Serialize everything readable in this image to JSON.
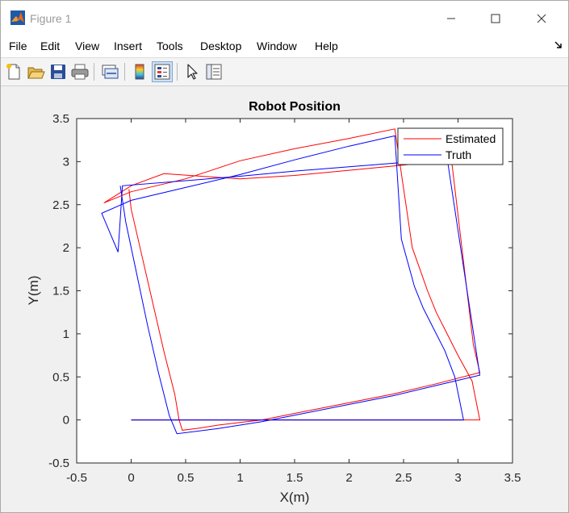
{
  "window": {
    "title": "Figure 1"
  },
  "menu": {
    "items": [
      "File",
      "Edit",
      "View",
      "Insert",
      "Tools",
      "Desktop",
      "Window",
      "Help"
    ]
  },
  "toolbar": {
    "icons": [
      "new-figure-icon",
      "open-file-icon",
      "save-icon",
      "print-icon",
      "link-plot-icon",
      "insert-colorbar-icon",
      "insert-legend-icon",
      "edit-plot-icon",
      "property-inspector-icon"
    ],
    "active": "insert-legend-icon"
  },
  "colors": {
    "estimated": "#ff0000",
    "truth": "#0000ff",
    "baseline": "#000000"
  },
  "chart_data": {
    "type": "line",
    "title": "Robot Position",
    "xlabel": "X(m)",
    "ylabel": "Y(m)",
    "xlim": [
      -0.5,
      3.5
    ],
    "ylim": [
      -0.5,
      3.5
    ],
    "xticks": [
      -0.5,
      0,
      0.5,
      1,
      1.5,
      2,
      2.5,
      3,
      3.5
    ],
    "yticks": [
      -0.5,
      0,
      0.5,
      1,
      1.5,
      2,
      2.5,
      3,
      3.5
    ],
    "xtick_labels": [
      "-0.5",
      "0",
      "0.5",
      "1",
      "1.5",
      "2",
      "2.5",
      "3",
      "3.5"
    ],
    "ytick_labels": [
      "-0.5",
      "0",
      "0.5",
      "1",
      "1.5",
      "2",
      "2.5",
      "3",
      "3.5"
    ],
    "grid": false,
    "legend_position": "top-right",
    "series": [
      {
        "name": "Estimated",
        "color": "#ff0000",
        "x": [
          0,
          3.2,
          3.13,
          3.0,
          2.9,
          2.8,
          2.72,
          2.65,
          2.58,
          2.42,
          2.0,
          1.5,
          1.0,
          0.5,
          0.0,
          -0.25,
          0.0,
          0.3,
          1.0,
          1.5,
          2.0,
          2.5,
          2.75,
          2.94,
          3.14,
          3.2,
          2.8,
          2.4,
          2.0,
          1.6,
          1.2,
          1.0,
          0.8,
          0.6,
          0.47,
          0.44,
          0.4,
          0.3,
          0.2,
          0.1,
          0.0,
          -0.02
        ],
        "y": [
          0,
          0,
          0.45,
          0.75,
          1.0,
          1.25,
          1.5,
          1.75,
          2.0,
          3.38,
          3.27,
          3.15,
          3.01,
          2.8,
          2.65,
          2.52,
          2.72,
          2.86,
          2.8,
          2.84,
          2.9,
          2.96,
          2.99,
          3.02,
          0.88,
          0.55,
          0.42,
          0.3,
          0.2,
          0.1,
          0.0,
          -0.03,
          -0.06,
          -0.1,
          -0.12,
          0.0,
          0.3,
          0.8,
          1.35,
          1.9,
          2.45,
          2.68
        ]
      },
      {
        "name": "Truth",
        "color": "#0000ff",
        "x": [
          0,
          3.05,
          2.97,
          2.88,
          2.78,
          2.68,
          2.6,
          2.48,
          2.42,
          2.0,
          1.5,
          1.0,
          0.5,
          0.0,
          -0.27,
          -0.12,
          -0.08,
          1.0,
          1.5,
          2.0,
          2.5,
          2.85,
          2.9,
          3.2,
          2.8,
          2.4,
          2.0,
          1.6,
          1.2,
          0.8,
          0.42,
          0.35,
          0.25,
          0.15,
          0.05,
          -0.05,
          -0.1
        ],
        "y": [
          0,
          0,
          0.5,
          0.8,
          1.05,
          1.3,
          1.55,
          2.1,
          3.3,
          3.18,
          3.02,
          2.85,
          2.7,
          2.55,
          2.4,
          1.95,
          2.72,
          2.83,
          2.89,
          2.94,
          2.99,
          3.02,
          3.04,
          0.52,
          0.4,
          0.28,
          0.18,
          0.08,
          -0.02,
          -0.1,
          -0.16,
          0.05,
          0.55,
          1.1,
          1.7,
          2.3,
          2.72
        ]
      },
      {
        "name": "",
        "color": "#000000",
        "x": [
          0,
          3.05
        ],
        "y": [
          0,
          0
        ]
      }
    ]
  }
}
